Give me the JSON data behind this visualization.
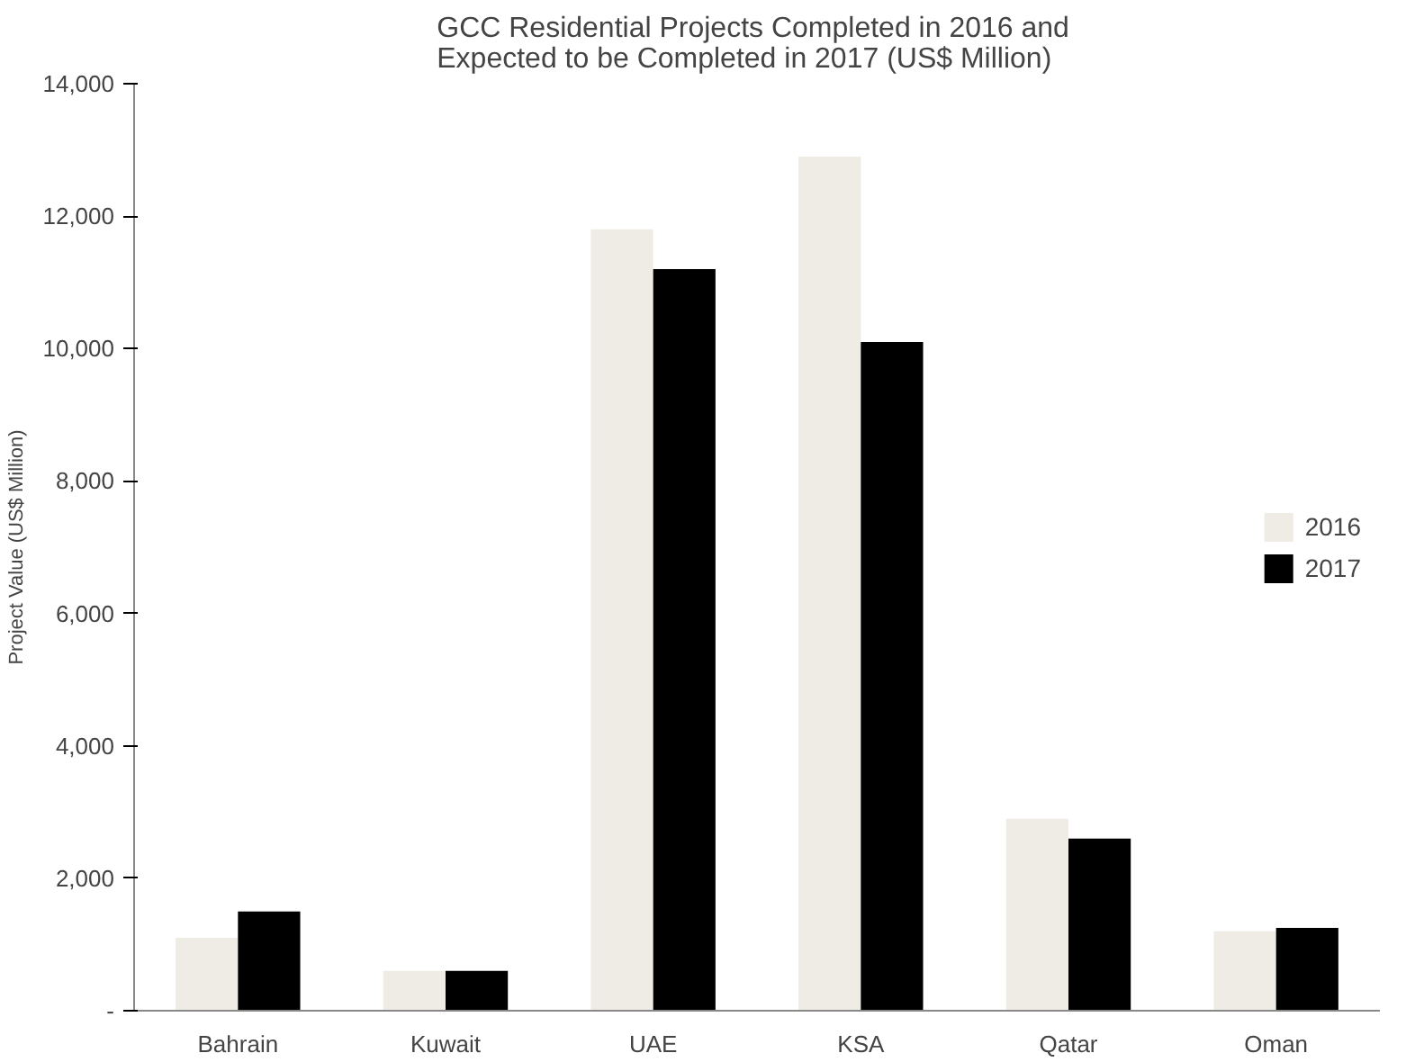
{
  "chart_data": {
    "type": "bar",
    "title": "GCC Residential Projects  Completed in 2016 and Expected to be Completed in  2017 (US$ Million)",
    "ylabel": "Project Value (US$ Million)",
    "categories": [
      "Bahrain",
      "Kuwait",
      "UAE",
      "KSA",
      "Qatar",
      "Oman"
    ],
    "series": [
      {
        "name": "2016",
        "color": "#efebe5",
        "values": [
          1100,
          600,
          11800,
          12900,
          2900,
          1200
        ]
      },
      {
        "name": "2017",
        "color": "#000000",
        "values": [
          1500,
          600,
          11200,
          10100,
          2600,
          1250
        ]
      }
    ],
    "ylim": [
      0,
      14000
    ],
    "yticks": [
      {
        "value": 0,
        "label": "-"
      },
      {
        "value": 2000,
        "label": "2,000"
      },
      {
        "value": 4000,
        "label": "4,000"
      },
      {
        "value": 6000,
        "label": "6,000"
      },
      {
        "value": 8000,
        "label": "8,000"
      },
      {
        "value": 10000,
        "label": "10,000"
      },
      {
        "value": 12000,
        "label": "12,000"
      },
      {
        "value": 14000,
        "label": "14,000"
      }
    ],
    "grid": false,
    "legend": "right"
  }
}
